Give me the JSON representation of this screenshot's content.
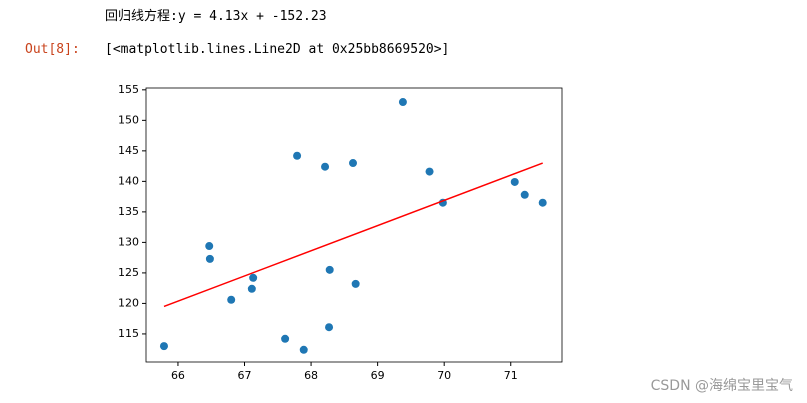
{
  "output": {
    "printed": "回归线方程:y = 4.13x + -152.23",
    "prompt": "Out[8]:",
    "result": "[<matplotlib.lines.Line2D at 0x25bb8669520>]"
  },
  "watermark": "CSDN @海绵宝里宝气",
  "chart_data": {
    "type": "scatter",
    "xlim": [
      65.52,
      71.77
    ],
    "ylim": [
      110.4,
      155.3
    ],
    "xticks": [
      66,
      67,
      68,
      69,
      70,
      71
    ],
    "yticks": [
      115,
      120,
      125,
      130,
      135,
      140,
      145,
      150,
      155
    ],
    "series": [
      {
        "type": "scatter",
        "color": "#1f77b4",
        "x": [
          65.79,
          66.47,
          66.48,
          66.8,
          67.13,
          67.11,
          67.61,
          67.79,
          67.89,
          68.21,
          68.27,
          68.28,
          68.63,
          68.67,
          69.38,
          69.78,
          69.98,
          71.06,
          71.21,
          71.48
        ],
        "values": [
          113.0,
          129.4,
          127.3,
          120.6,
          124.2,
          122.4,
          114.2,
          144.2,
          112.4,
          142.4,
          116.1,
          125.5,
          143.0,
          123.2,
          153.0,
          141.6,
          136.5,
          139.9,
          137.8,
          136.5
        ]
      },
      {
        "type": "line",
        "color": "#ff0000",
        "x": [
          65.79,
          71.48
        ],
        "values": [
          119.5,
          143.0
        ]
      }
    ]
  }
}
